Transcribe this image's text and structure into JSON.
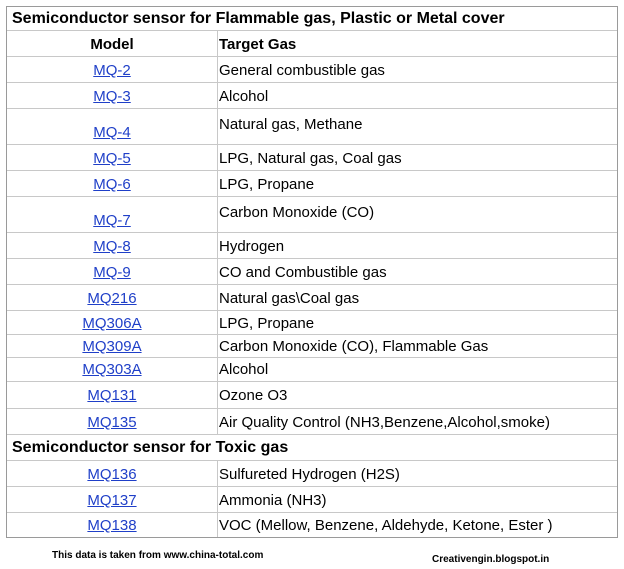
{
  "section1": {
    "title": "Semiconductor sensor for Flammable gas, Plastic or Metal cover"
  },
  "header": {
    "model": "Model",
    "gas": "Target  Gas"
  },
  "rows1": [
    {
      "model": "MQ-2",
      "gas": "General combustible gas"
    },
    {
      "model": "MQ-3",
      "gas": "Alcohol"
    },
    {
      "model": "MQ-4",
      "gas": "Natural gas, Methane"
    },
    {
      "model": "MQ-5",
      "gas": "LPG, Natural gas, Coal gas"
    },
    {
      "model": "MQ-6",
      "gas": "LPG, Propane"
    },
    {
      "model": "MQ-7",
      "gas": "Carbon Monoxide (CO)"
    },
    {
      "model": "MQ-8",
      "gas": "Hydrogen"
    },
    {
      "model": "MQ-9",
      "gas": "CO and Combustible gas"
    },
    {
      "model": "MQ216",
      "gas": "Natural gas\\Coal gas"
    },
    {
      "model": "MQ306A",
      "gas": "LPG, Propane"
    },
    {
      "model": "MQ309A",
      "gas": "Carbon Monoxide (CO), Flammable Gas"
    },
    {
      "model": "MQ303A",
      "gas": "Alcohol"
    },
    {
      "model": "MQ131",
      "gas": "Ozone O3"
    },
    {
      "model": "MQ135",
      "gas": "Air Quality Control (NH3,Benzene,Alcohol,smoke)"
    }
  ],
  "section2": {
    "title": "Semiconductor sensor for Toxic gas"
  },
  "rows2": [
    {
      "model": "MQ136",
      "gas": "Sulfureted Hydrogen (H2S)"
    },
    {
      "model": "MQ137",
      "gas": "Ammonia (NH3)"
    },
    {
      "model": "MQ138",
      "gas": "VOC (Mellow, Benzene, Aldehyde, Ketone, Ester )"
    }
  ],
  "footer": {
    "source": "This data is taken from www.china-total.com",
    "blog": "Creativengin.blogspot.in"
  }
}
